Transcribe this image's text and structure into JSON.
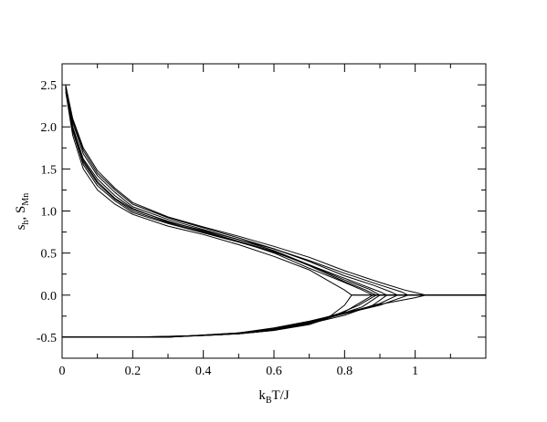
{
  "chart_data": {
    "type": "line",
    "title": "",
    "xlabel": {
      "main": "k",
      "sub": "B",
      "tail": "T/J"
    },
    "ylabel": {
      "p1": "s",
      "s1": "h",
      "p2": ", S",
      "s2": "Mn"
    },
    "xlim": [
      0,
      1.2
    ],
    "ylim": [
      -0.75,
      2.75
    ],
    "xticks": [
      0,
      0.2,
      0.4,
      0.6,
      0.8,
      1
    ],
    "xtick_labels": [
      "0",
      "0.2",
      "0.4",
      "0.6",
      "0.8",
      "1"
    ],
    "yticks": [
      -0.5,
      0,
      0.5,
      1,
      1.5,
      2,
      2.5
    ],
    "ytick_labels": [
      "-0.5",
      "0.0",
      "0.5",
      "1.0",
      "1.5",
      "2.0",
      "2.5"
    ],
    "grid": false,
    "legend": "none",
    "line_color": "#000000",
    "series": [
      {
        "role": "upper",
        "x": [
          0.01,
          0.03,
          0.06,
          0.1,
          0.15,
          0.2,
          0.3,
          0.4,
          0.5,
          0.6,
          0.7,
          0.8,
          0.85,
          0.88,
          1.2
        ],
        "y": [
          2.5,
          2.0,
          1.6,
          1.35,
          1.15,
          1.02,
          0.88,
          0.76,
          0.64,
          0.5,
          0.32,
          0.15,
          0.06,
          0.0,
          0.0
        ]
      },
      {
        "role": "upper",
        "x": [
          0.01,
          0.03,
          0.06,
          0.1,
          0.15,
          0.2,
          0.3,
          0.4,
          0.5,
          0.6,
          0.7,
          0.8,
          0.87,
          0.9,
          1.2
        ],
        "y": [
          2.48,
          2.05,
          1.68,
          1.42,
          1.22,
          1.05,
          0.9,
          0.78,
          0.66,
          0.53,
          0.36,
          0.18,
          0.07,
          0.0,
          0.0
        ]
      },
      {
        "role": "upper",
        "x": [
          0.01,
          0.03,
          0.06,
          0.1,
          0.15,
          0.2,
          0.3,
          0.4,
          0.5,
          0.6,
          0.7,
          0.8,
          0.85,
          0.9,
          0.92,
          1.2
        ],
        "y": [
          2.45,
          1.95,
          1.55,
          1.3,
          1.12,
          0.98,
          0.85,
          0.74,
          0.63,
          0.51,
          0.36,
          0.2,
          0.12,
          0.04,
          0.0,
          0.0
        ]
      },
      {
        "role": "upper",
        "x": [
          0.01,
          0.03,
          0.06,
          0.1,
          0.15,
          0.2,
          0.3,
          0.4,
          0.5,
          0.6,
          0.7,
          0.8,
          0.88,
          0.93,
          0.95,
          1.2
        ],
        "y": [
          2.5,
          2.08,
          1.72,
          1.45,
          1.25,
          1.08,
          0.92,
          0.8,
          0.68,
          0.55,
          0.4,
          0.23,
          0.12,
          0.04,
          0.0,
          0.0
        ]
      },
      {
        "role": "upper",
        "x": [
          0.01,
          0.03,
          0.06,
          0.1,
          0.15,
          0.2,
          0.3,
          0.4,
          0.5,
          0.6,
          0.7,
          0.8,
          0.9,
          0.96,
          0.98,
          1.2
        ],
        "y": [
          2.47,
          2.0,
          1.62,
          1.38,
          1.18,
          1.03,
          0.87,
          0.77,
          0.66,
          0.55,
          0.41,
          0.26,
          0.12,
          0.04,
          0.0,
          0.0
        ]
      },
      {
        "role": "upper",
        "x": [
          0.01,
          0.03,
          0.06,
          0.1,
          0.15,
          0.2,
          0.3,
          0.4,
          0.5,
          0.6,
          0.7,
          0.8,
          0.9,
          0.97,
          1.01,
          1.03,
          1.2
        ],
        "y": [
          2.49,
          2.1,
          1.75,
          1.48,
          1.27,
          1.1,
          0.93,
          0.81,
          0.7,
          0.58,
          0.45,
          0.29,
          0.15,
          0.06,
          0.02,
          0.0,
          0.0
        ]
      },
      {
        "role": "upper",
        "x": [
          0.01,
          0.03,
          0.06,
          0.1,
          0.15,
          0.2,
          0.3,
          0.4,
          0.5,
          0.6,
          0.7,
          0.75,
          0.8,
          0.82,
          1.2
        ],
        "y": [
          2.42,
          1.9,
          1.5,
          1.25,
          1.08,
          0.96,
          0.82,
          0.72,
          0.6,
          0.46,
          0.3,
          0.18,
          0.06,
          0.0,
          0.0
        ]
      },
      {
        "role": "upper",
        "x": [
          0.01,
          0.03,
          0.06,
          0.1,
          0.15,
          0.2,
          0.3,
          0.4,
          0.5,
          0.6,
          0.7,
          0.8,
          0.86,
          0.89,
          1.2
        ],
        "y": [
          2.46,
          1.98,
          1.58,
          1.33,
          1.14,
          1.0,
          0.86,
          0.75,
          0.64,
          0.52,
          0.35,
          0.16,
          0.06,
          0.0,
          0.0
        ]
      },
      {
        "role": "lower",
        "x": [
          0.0,
          0.2,
          0.4,
          0.5,
          0.6,
          0.7,
          0.8,
          0.88,
          1.2
        ],
        "y": [
          -0.5,
          -0.5,
          -0.48,
          -0.45,
          -0.4,
          -0.32,
          -0.2,
          0.0,
          0.0
        ]
      },
      {
        "role": "lower",
        "x": [
          0.0,
          0.25,
          0.45,
          0.55,
          0.65,
          0.75,
          0.85,
          0.9,
          1.2
        ],
        "y": [
          -0.5,
          -0.5,
          -0.47,
          -0.43,
          -0.37,
          -0.28,
          -0.14,
          0.0,
          0.0
        ]
      },
      {
        "role": "lower",
        "x": [
          0.0,
          0.3,
          0.5,
          0.6,
          0.7,
          0.8,
          0.88,
          0.92,
          1.2
        ],
        "y": [
          -0.5,
          -0.5,
          -0.46,
          -0.42,
          -0.34,
          -0.24,
          -0.12,
          0.0,
          0.0
        ]
      },
      {
        "role": "lower",
        "x": [
          0.0,
          0.3,
          0.5,
          0.6,
          0.7,
          0.8,
          0.9,
          0.95,
          1.2
        ],
        "y": [
          -0.5,
          -0.5,
          -0.46,
          -0.41,
          -0.33,
          -0.22,
          -0.1,
          0.0,
          0.0
        ]
      },
      {
        "role": "lower",
        "x": [
          0.0,
          0.3,
          0.5,
          0.6,
          0.7,
          0.8,
          0.9,
          0.98,
          1.2
        ],
        "y": [
          -0.5,
          -0.5,
          -0.45,
          -0.4,
          -0.32,
          -0.22,
          -0.12,
          0.0,
          0.0
        ]
      },
      {
        "role": "lower",
        "x": [
          0.0,
          0.3,
          0.5,
          0.6,
          0.7,
          0.8,
          0.9,
          1.0,
          1.03,
          1.2
        ],
        "y": [
          -0.5,
          -0.5,
          -0.45,
          -0.39,
          -0.31,
          -0.21,
          -0.11,
          -0.03,
          0.0,
          0.0
        ]
      },
      {
        "role": "lower",
        "x": [
          0.0,
          0.2,
          0.4,
          0.5,
          0.6,
          0.7,
          0.75,
          0.8,
          0.82,
          1.2
        ],
        "y": [
          -0.5,
          -0.5,
          -0.48,
          -0.46,
          -0.42,
          -0.35,
          -0.28,
          -0.12,
          0.0,
          0.0
        ]
      },
      {
        "role": "lower",
        "x": [
          0.0,
          0.25,
          0.45,
          0.55,
          0.65,
          0.75,
          0.84,
          0.89,
          1.2
        ],
        "y": [
          -0.5,
          -0.5,
          -0.47,
          -0.44,
          -0.38,
          -0.28,
          -0.12,
          0.0,
          0.0
        ]
      }
    ]
  }
}
